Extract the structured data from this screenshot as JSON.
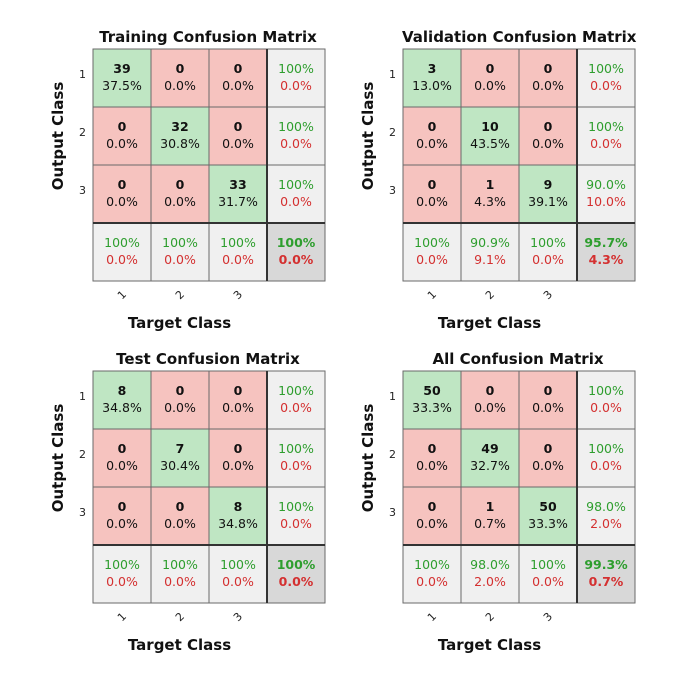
{
  "chart_data": [
    {
      "type": "heatmap",
      "title": "Training Confusion Matrix",
      "xlabel": "Target Class",
      "ylabel": "Output Class",
      "classes": [
        "1",
        "2",
        "3"
      ],
      "counts": [
        [
          39,
          0,
          0
        ],
        [
          0,
          32,
          0
        ],
        [
          0,
          0,
          33
        ]
      ],
      "percents": [
        [
          "37.5%",
          "0.0%",
          "0.0%"
        ],
        [
          "0.0%",
          "30.8%",
          "0.0%"
        ],
        [
          "0.0%",
          "0.0%",
          "31.7%"
        ]
      ],
      "row_summary": [
        [
          "100%",
          "0.0%"
        ],
        [
          "100%",
          "0.0%"
        ],
        [
          "100%",
          "0.0%"
        ]
      ],
      "col_summary": [
        [
          "100%",
          "0.0%"
        ],
        [
          "100%",
          "0.0%"
        ],
        [
          "100%",
          "0.0%"
        ]
      ],
      "total": [
        "100%",
        "0.0%"
      ]
    },
    {
      "type": "heatmap",
      "title": "Validation Confusion Matrix",
      "xlabel": "Target Class",
      "ylabel": "Output Class",
      "classes": [
        "1",
        "2",
        "3"
      ],
      "counts": [
        [
          3,
          0,
          0
        ],
        [
          0,
          10,
          0
        ],
        [
          0,
          1,
          9
        ]
      ],
      "percents": [
        [
          "13.0%",
          "0.0%",
          "0.0%"
        ],
        [
          "0.0%",
          "43.5%",
          "0.0%"
        ],
        [
          "0.0%",
          "4.3%",
          "39.1%"
        ]
      ],
      "row_summary": [
        [
          "100%",
          "0.0%"
        ],
        [
          "100%",
          "0.0%"
        ],
        [
          "90.0%",
          "10.0%"
        ]
      ],
      "col_summary": [
        [
          "100%",
          "0.0%"
        ],
        [
          "90.9%",
          "9.1%"
        ],
        [
          "100%",
          "0.0%"
        ]
      ],
      "total": [
        "95.7%",
        "4.3%"
      ]
    },
    {
      "type": "heatmap",
      "title": "Test Confusion Matrix",
      "xlabel": "Target Class",
      "ylabel": "Output Class",
      "classes": [
        "1",
        "2",
        "3"
      ],
      "counts": [
        [
          8,
          0,
          0
        ],
        [
          0,
          7,
          0
        ],
        [
          0,
          0,
          8
        ]
      ],
      "percents": [
        [
          "34.8%",
          "0.0%",
          "0.0%"
        ],
        [
          "0.0%",
          "30.4%",
          "0.0%"
        ],
        [
          "0.0%",
          "0.0%",
          "34.8%"
        ]
      ],
      "row_summary": [
        [
          "100%",
          "0.0%"
        ],
        [
          "100%",
          "0.0%"
        ],
        [
          "100%",
          "0.0%"
        ]
      ],
      "col_summary": [
        [
          "100%",
          "0.0%"
        ],
        [
          "100%",
          "0.0%"
        ],
        [
          "100%",
          "0.0%"
        ]
      ],
      "total": [
        "100%",
        "0.0%"
      ]
    },
    {
      "type": "heatmap",
      "title": "All Confusion Matrix",
      "xlabel": "Target Class",
      "ylabel": "Output Class",
      "classes": [
        "1",
        "2",
        "3"
      ],
      "counts": [
        [
          50,
          0,
          0
        ],
        [
          0,
          49,
          0
        ],
        [
          0,
          1,
          50
        ]
      ],
      "percents": [
        [
          "33.3%",
          "0.0%",
          "0.0%"
        ],
        [
          "0.0%",
          "32.7%",
          "0.0%"
        ],
        [
          "0.0%",
          "0.7%",
          "33.3%"
        ]
      ],
      "row_summary": [
        [
          "100%",
          "0.0%"
        ],
        [
          "100%",
          "0.0%"
        ],
        [
          "98.0%",
          "2.0%"
        ]
      ],
      "col_summary": [
        [
          "100%",
          "0.0%"
        ],
        [
          "98.0%",
          "2.0%"
        ],
        [
          "100%",
          "0.0%"
        ]
      ],
      "total": [
        "99.3%",
        "0.7%"
      ]
    }
  ],
  "colors": {
    "correct_cell": "#bfe6c3",
    "error_cell": "#f6c3bf",
    "summary_cell": "#f0f0f0",
    "total_cell": "#d8d8d8",
    "correct_text": "#2e9e2e",
    "error_text": "#d43030"
  }
}
